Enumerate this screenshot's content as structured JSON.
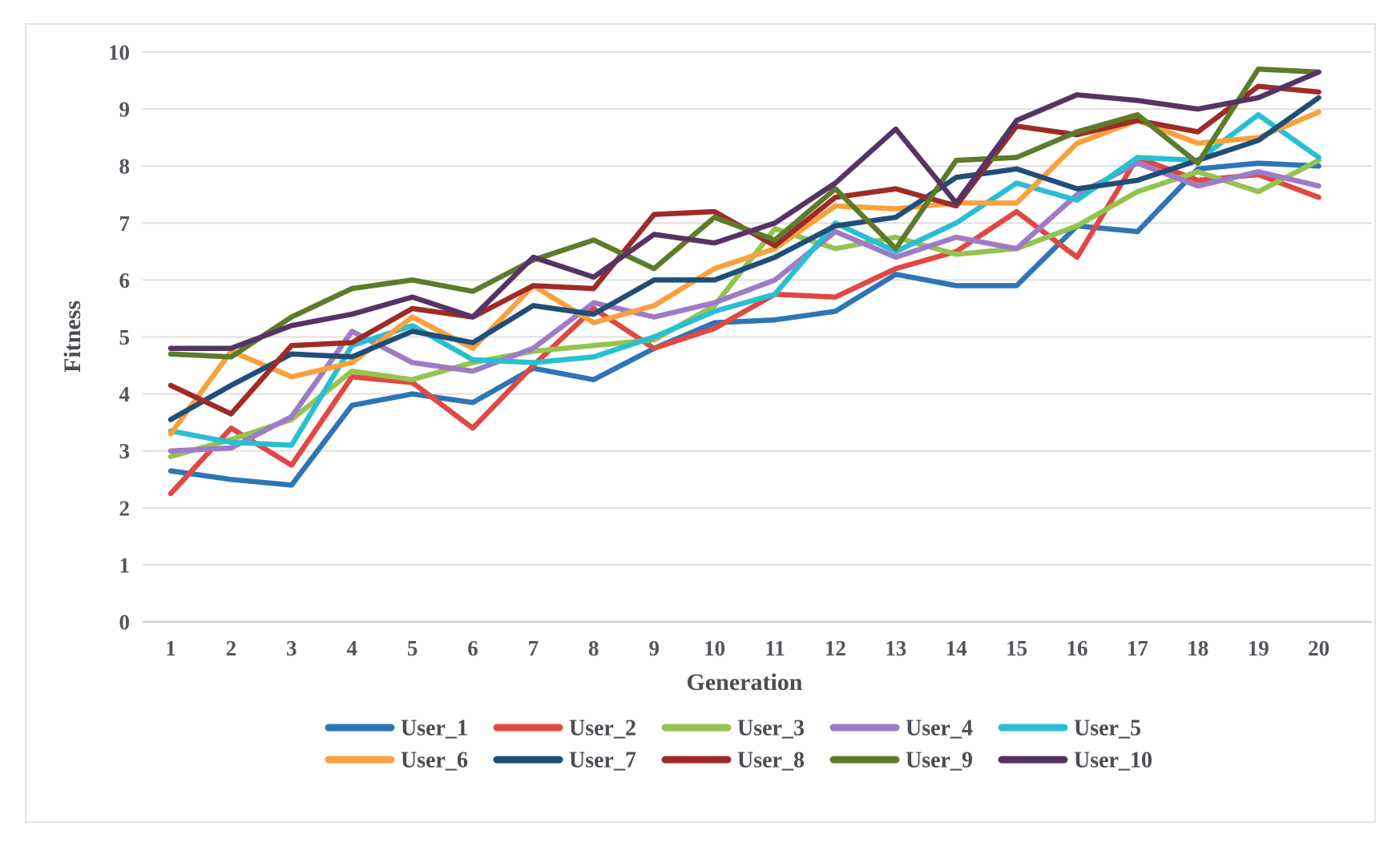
{
  "figure": {
    "background_color": "#ffffff",
    "border_color": "#e4e4e4",
    "text_color": "#4c4d53",
    "gridline_color": "#dcdcdc"
  },
  "chart_data": {
    "type": "line",
    "title": "",
    "xlabel": "Generation",
    "ylabel": "Fitness",
    "x": [
      1,
      2,
      3,
      4,
      5,
      6,
      7,
      8,
      9,
      10,
      11,
      12,
      13,
      14,
      15,
      16,
      17,
      18,
      19,
      20
    ],
    "yticks": [
      0,
      1,
      2,
      3,
      4,
      5,
      6,
      7,
      8,
      9,
      10
    ],
    "ylim": [
      0,
      10
    ],
    "grid": true,
    "legend_position": "bottom",
    "legend_rows": 2,
    "series": [
      {
        "name": "User_1",
        "color": "#2E75B6",
        "values": [
          2.65,
          2.5,
          2.4,
          3.8,
          4.0,
          3.85,
          4.45,
          4.25,
          4.8,
          5.25,
          5.3,
          5.45,
          6.1,
          5.9,
          5.9,
          6.95,
          6.85,
          7.95,
          8.05,
          8.0
        ]
      },
      {
        "name": "User_2",
        "color": "#E04843",
        "values": [
          2.25,
          3.4,
          2.75,
          4.3,
          4.2,
          3.4,
          4.5,
          5.5,
          4.8,
          5.15,
          5.75,
          5.7,
          6.2,
          6.5,
          7.2,
          6.4,
          8.15,
          7.75,
          7.85,
          7.45
        ]
      },
      {
        "name": "User_3",
        "color": "#95C351",
        "values": [
          2.9,
          3.2,
          3.55,
          4.4,
          4.25,
          4.55,
          4.75,
          4.85,
          4.95,
          5.55,
          6.9,
          6.55,
          6.75,
          6.45,
          6.55,
          6.95,
          7.55,
          7.9,
          7.55,
          8.1
        ]
      },
      {
        "name": "User_4",
        "color": "#9E7BC7",
        "values": [
          3.0,
          3.05,
          3.6,
          5.1,
          4.55,
          4.4,
          4.8,
          5.6,
          5.35,
          5.6,
          6.0,
          6.85,
          6.4,
          6.75,
          6.55,
          7.5,
          8.05,
          7.65,
          7.9,
          7.65
        ]
      },
      {
        "name": "User_5",
        "color": "#29BFD2",
        "values": [
          3.35,
          3.15,
          3.1,
          4.85,
          5.2,
          4.6,
          4.55,
          4.65,
          5.0,
          5.45,
          5.75,
          7.0,
          6.5,
          7.0,
          7.7,
          7.4,
          8.15,
          8.1,
          8.9,
          8.15
        ]
      },
      {
        "name": "User_6",
        "color": "#F9A13D",
        "values": [
          3.3,
          4.75,
          4.3,
          4.55,
          5.35,
          4.8,
          5.9,
          5.25,
          5.55,
          6.2,
          6.55,
          7.3,
          7.25,
          7.35,
          7.35,
          8.4,
          8.8,
          8.4,
          8.5,
          8.95
        ]
      },
      {
        "name": "User_7",
        "color": "#1F4E79",
        "values": [
          3.55,
          4.15,
          4.7,
          4.65,
          5.1,
          4.9,
          5.55,
          5.4,
          6.0,
          6.0,
          6.4,
          6.95,
          7.1,
          7.8,
          7.95,
          7.6,
          7.75,
          8.1,
          8.45,
          9.2
        ]
      },
      {
        "name": "User_8",
        "color": "#9E2B25",
        "values": [
          4.15,
          3.65,
          4.85,
          4.9,
          5.5,
          5.35,
          5.9,
          5.85,
          7.15,
          7.2,
          6.6,
          7.45,
          7.6,
          7.3,
          8.7,
          8.55,
          8.8,
          8.6,
          9.4,
          9.3
        ]
      },
      {
        "name": "User_9",
        "color": "#5E7B2B",
        "values": [
          4.7,
          4.65,
          5.35,
          5.85,
          6.0,
          5.8,
          6.35,
          6.7,
          6.2,
          7.1,
          6.7,
          7.6,
          6.55,
          8.1,
          8.15,
          8.6,
          8.9,
          8.05,
          9.7,
          9.65
        ]
      },
      {
        "name": "User_10",
        "color": "#563365",
        "values": [
          4.8,
          4.8,
          5.2,
          5.4,
          5.7,
          5.35,
          6.4,
          6.05,
          6.8,
          6.65,
          7.0,
          7.7,
          8.65,
          7.35,
          8.8,
          9.25,
          9.15,
          9.0,
          9.2,
          9.65
        ]
      }
    ]
  }
}
